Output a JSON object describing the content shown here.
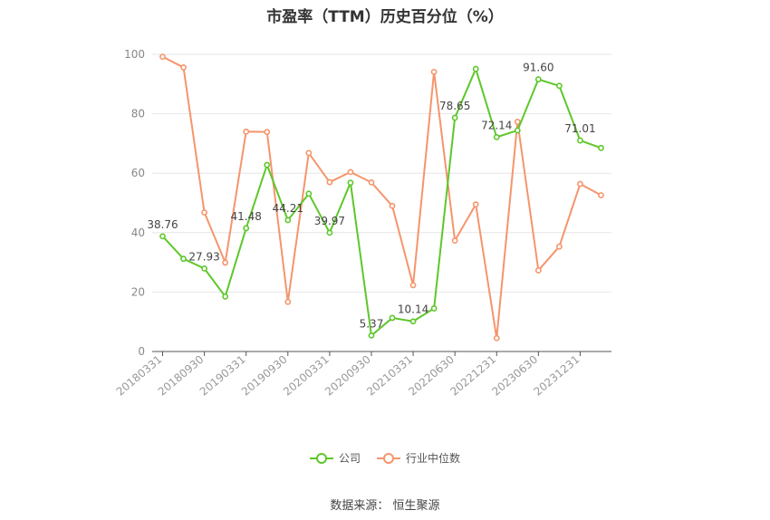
{
  "chart_data": {
    "type": "line",
    "title": "市盈率（TTM）历史百分位（%）",
    "source": "数据来源：  恒生聚源",
    "ylim": [
      0,
      100
    ],
    "yticks": [
      0,
      20,
      40,
      60,
      80,
      100
    ],
    "grid": true,
    "legend_position": "bottom-center",
    "x": [
      "20180331",
      "20180630",
      "20180930",
      "20181231",
      "20190331",
      "20190630",
      "20190930",
      "20191231",
      "20200331",
      "20200630",
      "20200930",
      "20201231",
      "20210331",
      "20210630",
      "20220630",
      "20220930",
      "20221231",
      "20230331",
      "20230630",
      "20230930",
      "20231231",
      "20240331"
    ],
    "xtick_labels": [
      "20180331",
      "20180930",
      "20190331",
      "20190930",
      "20200331",
      "20200930",
      "20210331",
      "20220630",
      "20221231",
      "20230630",
      "20231231"
    ],
    "series": [
      {
        "name": "公司",
        "color": "#5ec72b",
        "values": [
          38.76,
          31.2,
          27.93,
          18.5,
          41.48,
          62.8,
          44.21,
          53.1,
          39.97,
          56.8,
          5.37,
          11.3,
          10.14,
          14.5,
          78.65,
          95.1,
          72.14,
          74.4,
          91.6,
          89.4,
          71.01,
          68.5
        ],
        "labels": [
          "38.76",
          "",
          "27.93",
          "",
          "41.48",
          "",
          "44.21",
          "",
          "39.97",
          "",
          "5.37",
          "",
          "10.14",
          "",
          "78.65",
          "",
          "72.14",
          "",
          "91.60",
          "",
          "71.01",
          ""
        ]
      },
      {
        "name": "行业中位数",
        "color": "#f5956c",
        "values": [
          99.2,
          95.6,
          46.8,
          29.9,
          74.0,
          73.9,
          16.7,
          66.8,
          57.0,
          60.4,
          56.9,
          49.0,
          22.3,
          94.1,
          37.3,
          49.5,
          4.5,
          77.3,
          27.3,
          35.3,
          56.4,
          52.6
        ]
      }
    ]
  }
}
